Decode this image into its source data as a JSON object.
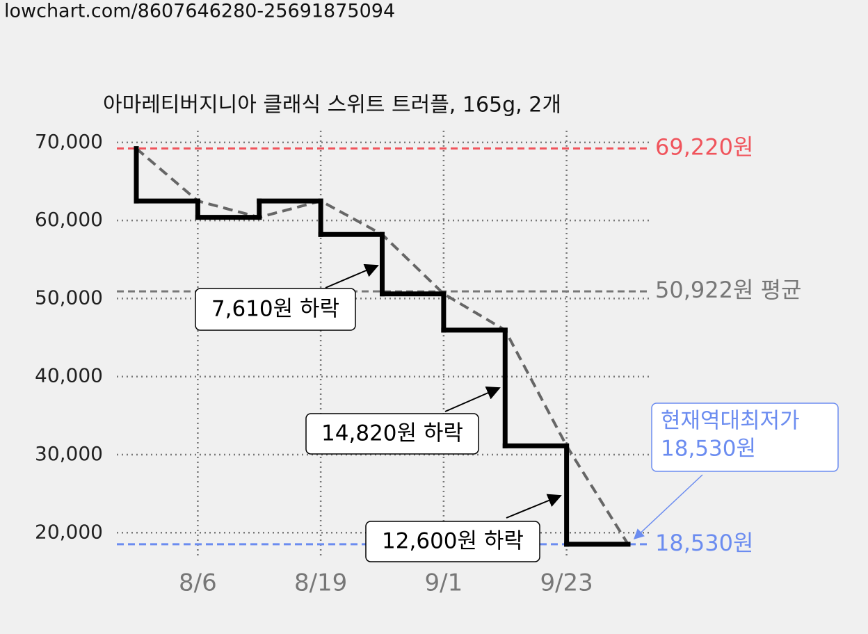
{
  "page": {
    "url": "lowchart.com/8607646280-25691875094"
  },
  "chart_data": {
    "type": "step",
    "title": "아마레티버지니아 클래식 스위트 트러플, 165g, 2개",
    "categories": [
      null,
      "8/6",
      null,
      "8/19",
      null,
      "9/1",
      null,
      "9/23",
      null
    ],
    "values": [
      69220,
      62500,
      60400,
      62500,
      58210,
      50600,
      45950,
      31130,
      18530
    ],
    "color": "#000000",
    "trend_color": "#666666",
    "ylim": [
      17000,
      71500
    ],
    "yticks": [
      {
        "value": 20000,
        "label": "20,000"
      },
      {
        "value": 30000,
        "label": "30,000"
      },
      {
        "value": 40000,
        "label": "40,000"
      },
      {
        "value": 50000,
        "label": "50,000"
      },
      {
        "value": 60000,
        "label": "60,000"
      },
      {
        "value": 70000,
        "label": "70,000"
      }
    ],
    "grid": true,
    "reference_lines": [
      {
        "value": 69220,
        "label": "69,220원",
        "color": "#f0545c"
      },
      {
        "value": 50922,
        "label": "50,922원 평균",
        "color": "#777777"
      },
      {
        "value": 18530,
        "label": "18,530원",
        "color": "#6b8cf0"
      }
    ],
    "annotations": [
      {
        "value": 7610,
        "text": "7,610원 하락"
      },
      {
        "value": 14820,
        "text": "14,820원 하락"
      },
      {
        "value": 12600,
        "text": "12,600원 하락"
      }
    ],
    "callout": {
      "value": 18530,
      "lines": [
        "현재역대최저가",
        "18,530원"
      ]
    }
  }
}
